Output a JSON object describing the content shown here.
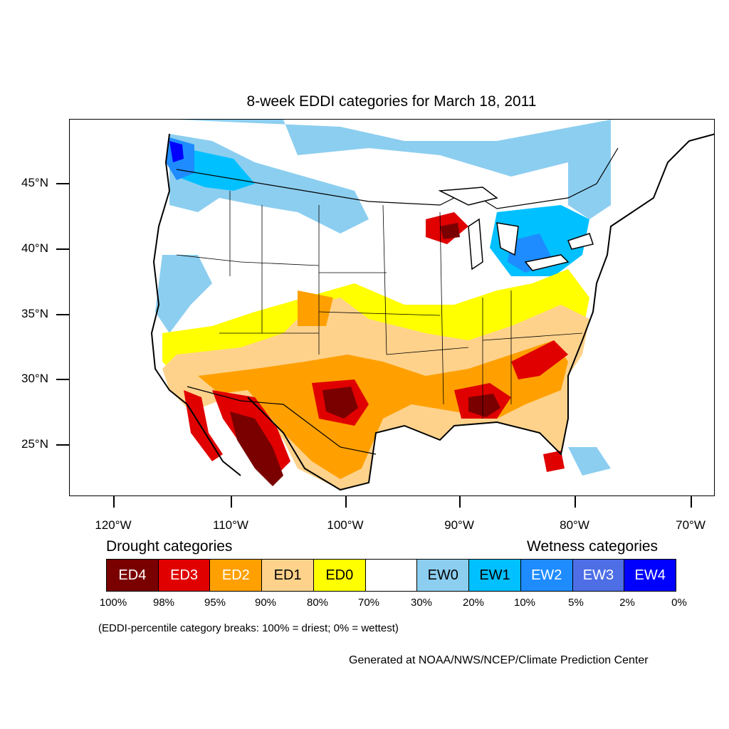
{
  "title": "8-week EDDI categories for March 18, 2011",
  "map": {
    "projection": "conic",
    "region": "Contiguous United States",
    "lat_labels": [
      "45°N",
      "40°N",
      "35°N",
      "30°N",
      "25°N"
    ],
    "lon_labels": [
      "120°W",
      "110°W",
      "100°W",
      "90°W",
      "80°W",
      "70°W"
    ],
    "category_colors": {
      "ED4": "#7a0000",
      "ED3": "#e00000",
      "ED2": "#ffa000",
      "ED1": "#ffd28c",
      "ED0": "#ffff00",
      "neutral": "#ffffff",
      "EW0": "#8ccef0",
      "EW1": "#00c0ff",
      "EW2": "#1e8cff",
      "EW3": "#4e6ee6",
      "EW4": "#0000ff"
    }
  },
  "legend": {
    "drought_heading": "Drought categories",
    "wetness_heading": "Wetness categories",
    "cells": [
      {
        "label": "ED4",
        "color": "#7a0000",
        "text_color": "#ffffff"
      },
      {
        "label": "ED3",
        "color": "#e00000",
        "text_color": "#ffffff"
      },
      {
        "label": "ED2",
        "color": "#ffa000",
        "text_color": "#ffffff"
      },
      {
        "label": "ED1",
        "color": "#ffd28c",
        "text_color": "#000000"
      },
      {
        "label": "ED0",
        "color": "#ffff00",
        "text_color": "#000000"
      },
      {
        "label": "",
        "color": "#ffffff",
        "text_color": "#000000"
      },
      {
        "label": "EW0",
        "color": "#8ccef0",
        "text_color": "#000000"
      },
      {
        "label": "EW1",
        "color": "#00c0ff",
        "text_color": "#000000"
      },
      {
        "label": "EW2",
        "color": "#1e8cff",
        "text_color": "#ffffff"
      },
      {
        "label": "EW3",
        "color": "#4e6ee6",
        "text_color": "#ffffff"
      },
      {
        "label": "EW4",
        "color": "#0000ff",
        "text_color": "#ffffff"
      }
    ],
    "percent_breaks": [
      "100%",
      "98%",
      "95%",
      "90%",
      "80%",
      "70%",
      "30%",
      "20%",
      "10%",
      "5%",
      "2%",
      "0%"
    ]
  },
  "note": "(EDDI-percentile category breaks: 100% = driest; 0% = wettest)",
  "credit": "Generated at NOAA/NWS/NCEP/Climate Prediction Center"
}
